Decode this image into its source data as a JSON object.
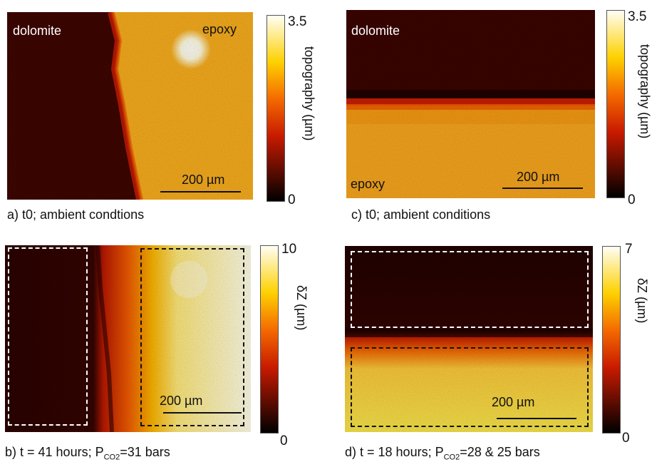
{
  "panels": {
    "a": {
      "caption": "a) t0; ambient condtions",
      "label_material_1": "dolomite",
      "label_material_2": "epoxy",
      "scalebar": "200 µm",
      "colorbar": {
        "max": "3.5",
        "min": "0",
        "title": "topography (µm)"
      }
    },
    "b": {
      "caption_prefix": "b) t = 41 hours; P",
      "caption_sub": "CO2",
      "caption_suffix": "=31 bars",
      "scalebar": "200 µm",
      "colorbar": {
        "max": "10",
        "min": "0",
        "title": "δZ (µm)"
      }
    },
    "c": {
      "caption": "c) t0; ambient conditions",
      "label_material_1": "dolomite",
      "label_material_2": "epoxy",
      "scalebar": "200 µm",
      "colorbar": {
        "max": "3.5",
        "min": "0",
        "title": "topography (µm)"
      }
    },
    "d": {
      "caption_prefix": "d) t = 18 hours; P",
      "caption_sub": "CO2",
      "caption_suffix": "=28 & 25 bars",
      "scalebar": "200 µm",
      "colorbar": {
        "max": "7",
        "min": "0",
        "title": "δZ (µm)"
      }
    }
  },
  "colors": {
    "dolomite_dark": "#3a0400",
    "epoxy_warm": "#f5a516",
    "epoxy_bright": "#fffbe0",
    "dashed_white": "#ffffff",
    "dashed_black": "#111111"
  },
  "colormap": "hot (black-red-yellow-white)"
}
